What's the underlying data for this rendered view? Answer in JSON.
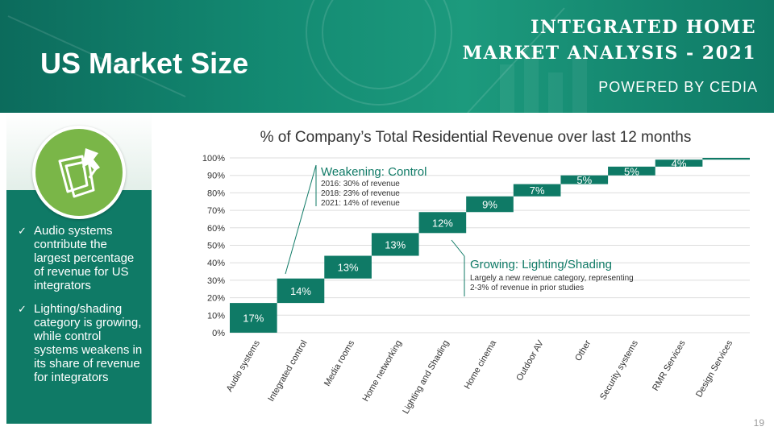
{
  "header": {
    "page_title": "US Market Size",
    "report_title_line1": "INTEGRATED HOME",
    "report_title_line2": "MARKET ANALYSIS - 2021",
    "powered_by": "POWERED BY CEDIA"
  },
  "sidebar": {
    "icon": "pushpin-notes-icon",
    "bullets": [
      "Audio systems contribute the largest percentage of revenue for US integrators",
      "Lighting/shading category is growing, while control systems weakens in its share of revenue for integrators"
    ]
  },
  "chart_data": {
    "type": "bar",
    "subtype": "waterfall",
    "title": "% of Company’s Total Residential Revenue over last 12 months",
    "categories": [
      "Audio systems",
      "Integrated control",
      "Media rooms",
      "Home networking",
      "Lighting and Shading",
      "Home cinema",
      "Outdoor AV",
      "Other",
      "Security systems",
      "RMR Services",
      "Design Services"
    ],
    "values": [
      17,
      14,
      13,
      13,
      12,
      9,
      7,
      5,
      5,
      4,
      1
    ],
    "data_labels": [
      "17%",
      "14%",
      "13%",
      "13%",
      "12%",
      "9%",
      "7%",
      "5%",
      "5%",
      "4%",
      ""
    ],
    "ylim": [
      0,
      100
    ],
    "y_ticks": [
      "0%",
      "10%",
      "20%",
      "30%",
      "40%",
      "50%",
      "60%",
      "70%",
      "80%",
      "90%",
      "100%"
    ],
    "grid": true,
    "colors": {
      "bar": "#0f7a66",
      "grid": "#dddddd"
    },
    "annotations": [
      {
        "title": "Weakening: Control",
        "lines": [
          "2016: 30% of revenue",
          "2018: 23% of revenue",
          "2021: 14% of revenue"
        ],
        "target": "Integrated control"
      },
      {
        "title": "Growing: Lighting/Shading",
        "lines": [
          "Largely a new revenue category, representing",
          "2-3% of revenue in prior studies"
        ],
        "target": "Lighting and Shading"
      }
    ]
  },
  "footer": {
    "page_number": "19"
  },
  "colors": {
    "banner": "#138a72",
    "accent": "#0f7a66",
    "icon_green": "#7ab648"
  }
}
